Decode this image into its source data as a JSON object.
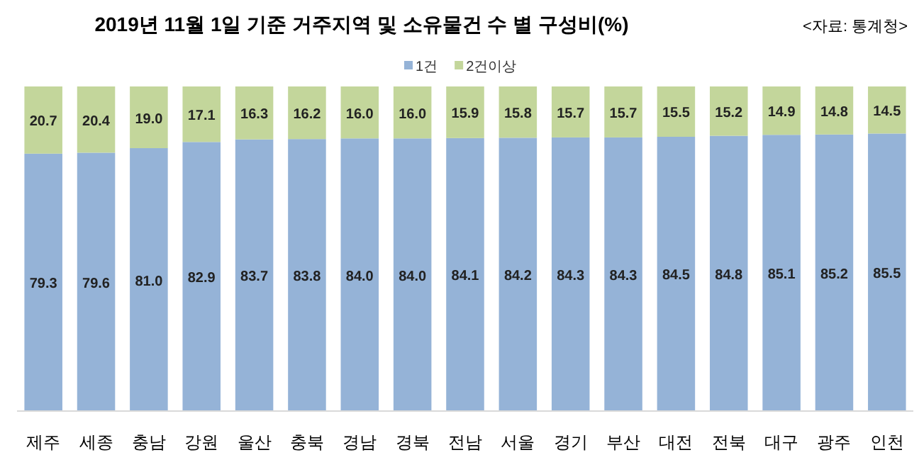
{
  "chart_data": {
    "type": "bar",
    "title": "2019년 11월 1일 기준 거주지역 및 소유물건 수 별 구성비(%)",
    "annotations": [
      "<자료: 통계청>"
    ],
    "categories": [
      "제주",
      "세종",
      "충남",
      "강원",
      "울산",
      "충북",
      "경남",
      "경북",
      "전남",
      "서울",
      "경기",
      "부산",
      "대전",
      "전북",
      "대구",
      "광주",
      "인천"
    ],
    "stacked": true,
    "legend": "top",
    "series": [
      {
        "name": "1건",
        "color": "#95b3d7",
        "values": [
          79.3,
          79.6,
          81,
          82.9,
          83.7,
          83.8,
          84,
          84,
          84.1,
          84.2,
          84.3,
          84.3,
          84.5,
          84.8,
          85.1,
          85.2,
          85.5
        ],
        "value_labels": [
          "79.3",
          "79.6",
          "81.0",
          "82.9",
          "83.7",
          "83.8",
          "84.0",
          "84.0",
          "84.1",
          "84.2",
          "84.3",
          "84.3",
          "84.5",
          "84.8",
          "85.1",
          "85.2",
          "85.5"
        ]
      },
      {
        "name": "2건이상",
        "color": "#c3d69b",
        "values": [
          20.7,
          20.4,
          19,
          17.1,
          16.3,
          16.2,
          16,
          16,
          15.9,
          15.8,
          15.7,
          15.7,
          15.5,
          15.2,
          14.9,
          14.8,
          14.5
        ],
        "value_labels": [
          "20.7",
          "20.4",
          "19.0",
          "17.1",
          "16.3",
          "16.2",
          "16.0",
          "16.0",
          "15.9",
          "15.8",
          "15.7",
          "15.7",
          "15.5",
          "15.2",
          "14.9",
          "14.8",
          "14.5"
        ]
      }
    ]
  }
}
